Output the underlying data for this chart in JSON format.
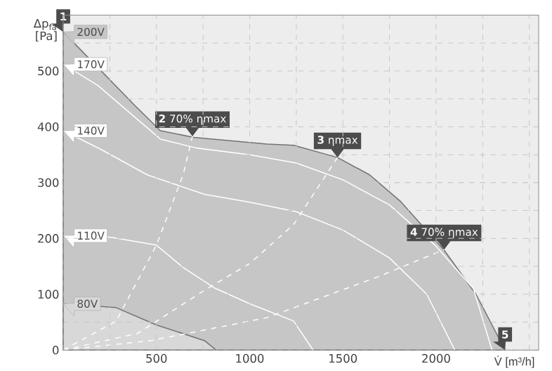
{
  "chart_data": {
    "type": "line",
    "xlabel": "V̇ [m³/h]",
    "ylabel": "Δp$_{fa}$ [Pa]",
    "xlim": [
      0,
      2550
    ],
    "ylim": [
      0,
      600
    ],
    "xticks": [
      {
        "value": 0,
        "label": null
      },
      {
        "value": 250,
        "label": null
      },
      500,
      {
        "value": 750,
        "label": null
      },
      1000,
      {
        "value": 1250,
        "label": null
      },
      1500,
      {
        "value": 1750,
        "label": null
      },
      2000,
      {
        "value": 2250,
        "label": null
      },
      {
        "value": 2500,
        "label": null
      }
    ],
    "yticks": [
      0,
      {
        "value": 50,
        "label": null
      },
      100,
      {
        "value": 150,
        "label": null
      },
      200,
      {
        "value": 250,
        "label": null
      },
      300,
      {
        "value": 350,
        "label": null
      },
      400,
      {
        "value": 450,
        "label": null
      },
      500,
      {
        "value": 550,
        "label": null
      }
    ],
    "grid": true,
    "legend": "left",
    "series": [
      {
        "name": "200V",
        "type": "area",
        "color": "#c6c6c6",
        "x": [
          0,
          379,
          521,
          700,
          1093,
          1236,
          1471,
          1643,
          1807,
          2043,
          2214,
          2370
        ],
        "values": [
          570,
          440,
          393,
          381,
          369,
          367,
          345,
          314,
          267,
          179,
          100,
          0
        ]
      },
      {
        "name": "170V",
        "color": "#ffffff",
        "x": [
          0,
          186,
          521,
          714,
          1000,
          1250,
          1500,
          1750,
          2000,
          2200,
          2300
        ],
        "values": [
          512,
          474,
          378,
          362,
          350,
          335,
          305,
          260,
          186,
          110,
          0
        ]
      },
      {
        "name": "140V",
        "color": "#ffffff",
        "x": [
          0,
          200,
          450,
          757,
          1000,
          1250,
          1500,
          1750,
          1950,
          2100
        ],
        "values": [
          393,
          360,
          314,
          279,
          265,
          248,
          215,
          165,
          100,
          0
        ]
      },
      {
        "name": "110V",
        "color": "#ffffff",
        "x": [
          0,
          257,
          500,
          643,
          807,
          1000,
          1236,
          1340
        ],
        "values": [
          205,
          202,
          188,
          148,
          112,
          83,
          52,
          0
        ]
      },
      {
        "name": "80V",
        "type": "area",
        "color": "#d8d8d8",
        "x": [
          0,
          284,
          500,
          757,
          820
        ],
        "values": [
          83,
          76,
          45,
          17,
          0
        ]
      },
      {
        "line_style": "dashed",
        "color": "#ffffff",
        "x": [
          0,
          284,
          500,
          643,
          693
        ],
        "values": [
          0,
          52,
          188,
          314,
          383
        ]
      },
      {
        "line_style": "dashed",
        "color": "#ffffff",
        "x": [
          0,
          400,
          757,
          1000,
          1236,
          1471
        ],
        "values": [
          0,
          30,
          107,
          155,
          225,
          345
        ]
      },
      {
        "line_style": "dashed",
        "color": "#ffffff",
        "x": [
          0,
          471,
          1093,
          1686,
          2043
        ],
        "values": [
          0,
          17,
          58,
          131,
          180
        ]
      }
    ],
    "annotations": [
      {
        "text": "**1**",
        "x": 0,
        "y": 570
      },
      {
        "text": "**2** 70% ηmax",
        "x": 693,
        "y": 383
      },
      {
        "text": "**3** ηmax",
        "x": 1471,
        "y": 345
      },
      {
        "text": "**4** 70% ηmax",
        "x": 2043,
        "y": 180
      },
      {
        "text": "**5**",
        "x": 2370,
        "y": 0
      }
    ]
  }
}
